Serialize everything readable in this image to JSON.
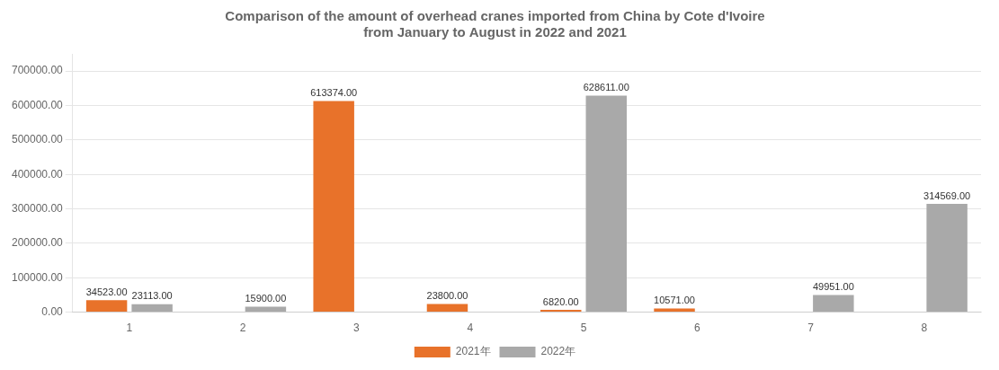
{
  "chart_data": {
    "type": "bar",
    "title": "Comparison of the amount of overhead cranes imported from China by Cote d'Ivoire\nfrom January to August in 2022 and 2021",
    "categories": [
      1,
      2,
      3,
      4,
      5,
      6,
      7,
      8
    ],
    "series": [
      {
        "name": "2021年",
        "color": "#E8722A",
        "values": [
          34523.0,
          0,
          613374.0,
          23800.0,
          6820.0,
          10571.0,
          0,
          0
        ],
        "value_labels": [
          "34523.00",
          null,
          "613374.00",
          "23800.00",
          "6820.00",
          "10571.00",
          null,
          null
        ]
      },
      {
        "name": "2022年",
        "color": "#A9A9A9",
        "values": [
          23113.0,
          15900.0,
          0,
          0,
          628611.0,
          0,
          49951.0,
          314569.0
        ],
        "value_labels": [
          "23113.00",
          "15900.00",
          null,
          null,
          "628611.00",
          null,
          "49951.00",
          "314569.00"
        ]
      }
    ],
    "ylim": [
      0,
      750000
    ],
    "yticks": [
      {
        "value": 0,
        "label": "0.00"
      },
      {
        "value": 100000,
        "label": "100000.00"
      },
      {
        "value": 200000,
        "label": "200000.00"
      },
      {
        "value": 300000,
        "label": "300000.00"
      },
      {
        "value": 400000,
        "label": "400000.00"
      },
      {
        "value": 500000,
        "label": "500000.00"
      },
      {
        "value": 600000,
        "label": "600000.00"
      },
      {
        "value": 700000,
        "label": "700000.00"
      }
    ],
    "grid": "y",
    "legend": "bottom",
    "data_labels": true
  }
}
